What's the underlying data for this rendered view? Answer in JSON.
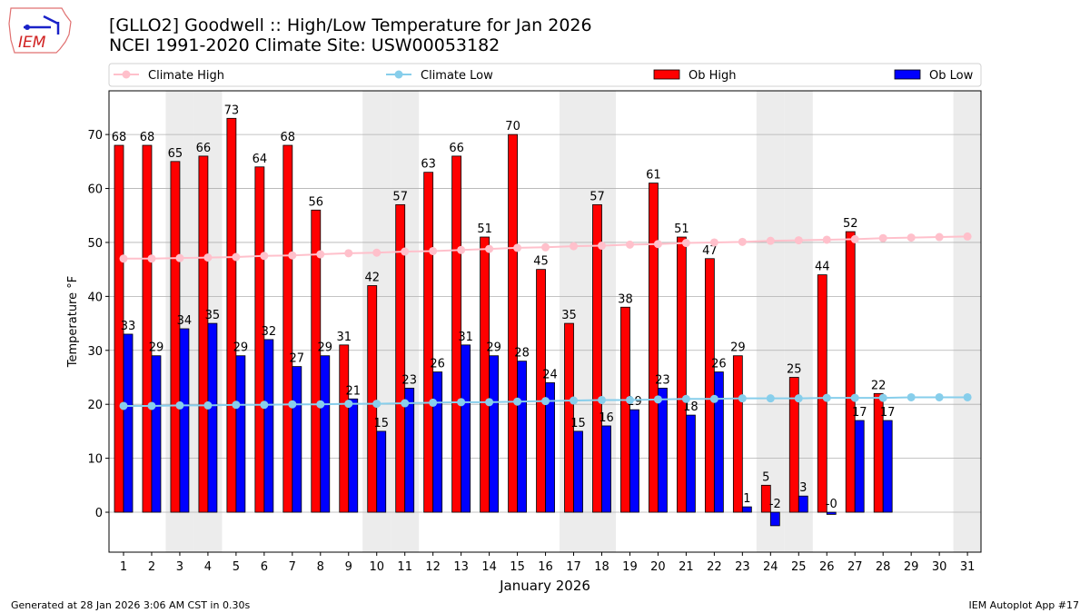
{
  "header": {
    "title_line1": "[GLLO2] Goodwell :: High/Low Temperature for Jan 2026",
    "title_line2": "NCEI 1991-2020 Climate Site: USW00053182",
    "logo_text": "IEM"
  },
  "footer": {
    "generated": "Generated at 28 Jan 2026 3:06 AM CST in 0.30s",
    "app": "IEM Autoplot App #17"
  },
  "chart_data": {
    "type": "bar",
    "xlabel": "January 2026",
    "ylabel": "Temperature °F",
    "ylim": [
      -7.4,
      78.1
    ],
    "yticks": [
      0,
      10,
      20,
      30,
      40,
      50,
      60,
      70
    ],
    "grid": true,
    "legend_placement": "top",
    "weekend_days": [
      3,
      4,
      10,
      11,
      17,
      18,
      24,
      25,
      31
    ],
    "days": [
      1,
      2,
      3,
      4,
      5,
      6,
      7,
      8,
      9,
      10,
      11,
      12,
      13,
      14,
      15,
      16,
      17,
      18,
      19,
      20,
      21,
      22,
      23,
      24,
      25,
      26,
      27,
      28,
      29,
      30,
      31
    ],
    "series": [
      {
        "name": "Climate High",
        "type": "line",
        "color": "#ffc0cb",
        "values": [
          47.0,
          47.0,
          47.1,
          47.2,
          47.3,
          47.5,
          47.6,
          47.8,
          48.0,
          48.1,
          48.3,
          48.4,
          48.6,
          48.8,
          49.0,
          49.1,
          49.3,
          49.4,
          49.6,
          49.7,
          49.9,
          50.0,
          50.1,
          50.3,
          50.4,
          50.5,
          50.6,
          50.8,
          50.9,
          51.0,
          51.1
        ]
      },
      {
        "name": "Climate Low",
        "type": "line",
        "color": "#87ceeb",
        "values": [
          19.7,
          19.7,
          19.8,
          19.8,
          19.9,
          19.9,
          20.0,
          20.0,
          20.1,
          20.1,
          20.2,
          20.3,
          20.4,
          20.4,
          20.5,
          20.6,
          20.7,
          20.8,
          20.8,
          20.9,
          21.0,
          21.0,
          21.1,
          21.1,
          21.1,
          21.2,
          21.2,
          21.2,
          21.3,
          21.3,
          21.3
        ]
      },
      {
        "name": "Ob High",
        "type": "bar",
        "color": "#ff0000",
        "values": [
          68,
          68,
          65,
          66,
          73,
          64,
          68,
          56,
          31,
          42,
          57,
          63,
          66,
          51,
          70,
          45,
          35,
          57,
          38,
          61,
          51,
          47,
          29,
          5,
          25,
          44,
          52,
          22
        ],
        "labels": [
          "68",
          "68",
          "65",
          "66",
          "73",
          "64",
          "68",
          "56",
          "31",
          "42",
          "57",
          "63",
          "66",
          "51",
          "70",
          "45",
          "35",
          "57",
          "38",
          "61",
          "51",
          "47",
          "29",
          "5",
          "25",
          "44",
          "52",
          "22"
        ]
      },
      {
        "name": "Ob Low",
        "type": "bar",
        "color": "#0000ff",
        "values": [
          33,
          29,
          34,
          35,
          29,
          32,
          27,
          29,
          21,
          15,
          23,
          26,
          31,
          29,
          28,
          24,
          15,
          16,
          19,
          23,
          18,
          26,
          1,
          -2.5,
          3,
          -0.4,
          17,
          17
        ],
        "labels": [
          "33",
          "29",
          "34",
          "35",
          "29",
          "32",
          "27",
          "29",
          "21",
          "15",
          "23",
          "26",
          "31",
          "29",
          "28",
          "24",
          "15",
          "16",
          "19",
          "23",
          "18",
          "26",
          "1",
          "-2",
          "3",
          "-0",
          "17",
          "17"
        ]
      }
    ]
  }
}
